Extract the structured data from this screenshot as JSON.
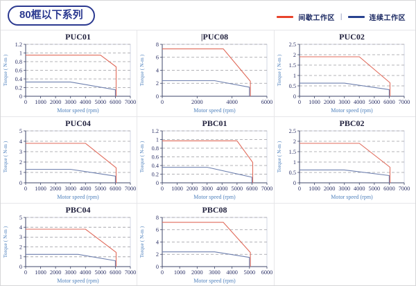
{
  "page": {
    "title_badge": "80框以下系列"
  },
  "legend": {
    "intermittent": "间歇工作区",
    "continuous": "连续工作区",
    "separator": "|",
    "position": "top-right"
  },
  "colors": {
    "accent_navy": "#2b3990",
    "legend_red": "#e8432b",
    "legend_blue": "#27418f",
    "curve_red": "#e06a5a",
    "curve_blue": "#6d7fae",
    "grid": "#9a9aa0",
    "axis": "#3c4468",
    "label_blue": "#4f81bd"
  },
  "chart_data": [
    {
      "type": "line",
      "title": "PUC01",
      "caret": false,
      "xlabel": "Motor speed (rpm)",
      "ylabel": "Torque ( N-m )",
      "xlim": [
        0,
        7000
      ],
      "xticks": [
        0,
        1000,
        2000,
        3000,
        4000,
        5000,
        6000,
        7000
      ],
      "ylim": [
        0,
        1.2
      ],
      "yticks": [
        0,
        0.2,
        0.4,
        0.6,
        0.8,
        1,
        1.2
      ],
      "grid": "horizontal-dashed",
      "series": [
        {
          "name": "间歇工作区",
          "zone": "intermittent",
          "points": [
            [
              0,
              0.95
            ],
            [
              5000,
              0.95
            ],
            [
              6050,
              0.68
            ],
            [
              6050,
              0
            ]
          ]
        },
        {
          "name": "连续工作区",
          "zone": "continuous",
          "points": [
            [
              0,
              0.33
            ],
            [
              3000,
              0.33
            ],
            [
              6000,
              0.15
            ],
            [
              6000,
              0
            ]
          ]
        }
      ]
    },
    {
      "type": "line",
      "title": "PUC08",
      "caret": true,
      "xlabel": "Motor speed (rpm)",
      "ylabel": "Torque ( N-m )",
      "xlim": [
        0,
        6000
      ],
      "xticks": [
        0,
        2000,
        4000,
        6000
      ],
      "ylim": [
        0,
        8
      ],
      "yticks": [
        0,
        2,
        4,
        6,
        8
      ],
      "grid": "horizontal-dashed",
      "series": [
        {
          "name": "间歇工作区",
          "zone": "intermittent",
          "points": [
            [
              0,
              7.3
            ],
            [
              3500,
              7.3
            ],
            [
              5050,
              2.3
            ],
            [
              5050,
              0
            ]
          ]
        },
        {
          "name": "连续工作区",
          "zone": "continuous",
          "points": [
            [
              0,
              2.4
            ],
            [
              3000,
              2.4
            ],
            [
              5000,
              1.4
            ],
            [
              5000,
              0
            ]
          ]
        }
      ]
    },
    {
      "type": "line",
      "title": "PUC02",
      "caret": false,
      "xlabel": "Motor speed (rpm)",
      "ylabel": "Torque ( N-m )",
      "xlim": [
        0,
        7000
      ],
      "xticks": [
        0,
        1000,
        2000,
        3000,
        4000,
        5000,
        6000,
        7000
      ],
      "ylim": [
        0,
        2.5
      ],
      "yticks": [
        0,
        0.5,
        1,
        1.5,
        2,
        2.5
      ],
      "grid": "horizontal-dashed",
      "series": [
        {
          "name": "间歇工作区",
          "zone": "intermittent",
          "points": [
            [
              0,
              1.9
            ],
            [
              4000,
              1.9
            ],
            [
              6050,
              0.65
            ],
            [
              6050,
              0
            ]
          ]
        },
        {
          "name": "连续工作区",
          "zone": "continuous",
          "points": [
            [
              0,
              0.63
            ],
            [
              3000,
              0.63
            ],
            [
              6000,
              0.32
            ],
            [
              6000,
              0
            ]
          ]
        }
      ]
    },
    {
      "type": "line",
      "title": "PUC04",
      "caret": false,
      "xlabel": "Motor speed (rpm)",
      "ylabel": "Torque ( N-m )",
      "xlim": [
        0,
        7000
      ],
      "xticks": [
        0,
        1000,
        2000,
        3000,
        4000,
        5000,
        6000,
        7000
      ],
      "ylim": [
        0,
        5
      ],
      "yticks": [
        0,
        1,
        2,
        3,
        4,
        5
      ],
      "grid": "horizontal-dashed",
      "series": [
        {
          "name": "间歇工作区",
          "zone": "intermittent",
          "points": [
            [
              0,
              3.8
            ],
            [
              4000,
              3.8
            ],
            [
              6050,
              1.45
            ],
            [
              6050,
              0
            ]
          ]
        },
        {
          "name": "连续工作区",
          "zone": "continuous",
          "points": [
            [
              0,
              1.3
            ],
            [
              3000,
              1.3
            ],
            [
              6000,
              0.65
            ],
            [
              6000,
              0
            ]
          ]
        }
      ]
    },
    {
      "type": "line",
      "title": "PBC01",
      "caret": false,
      "xlabel": "Motor speed (rpm)",
      "ylabel": "Torque ( N-m )",
      "xlim": [
        0,
        7000
      ],
      "xticks": [
        0,
        1000,
        2000,
        3000,
        4000,
        5000,
        6000,
        7000
      ],
      "ylim": [
        0,
        1.2
      ],
      "yticks": [
        0,
        0.2,
        0.4,
        0.6,
        0.8,
        1,
        1.2
      ],
      "grid": "horizontal-dashed",
      "series": [
        {
          "name": "间歇工作区",
          "zone": "intermittent",
          "points": [
            [
              0,
              0.97
            ],
            [
              5000,
              0.97
            ],
            [
              6050,
              0.47
            ],
            [
              6050,
              0
            ]
          ]
        },
        {
          "name": "连续工作区",
          "zone": "continuous",
          "points": [
            [
              0,
              0.36
            ],
            [
              3000,
              0.36
            ],
            [
              6000,
              0.13
            ],
            [
              6000,
              0
            ]
          ]
        }
      ]
    },
    {
      "type": "line",
      "title": "PBC02",
      "caret": false,
      "xlabel": "Motor speed (rpm)",
      "ylabel": "Torque ( N-m )",
      "xlim": [
        0,
        7000
      ],
      "xticks": [
        0,
        1000,
        2000,
        3000,
        4000,
        5000,
        6000,
        7000
      ],
      "ylim": [
        0,
        2.5
      ],
      "yticks": [
        0,
        0.5,
        1,
        1.5,
        2,
        2.5
      ],
      "grid": "horizontal-dashed",
      "series": [
        {
          "name": "间歇工作区",
          "zone": "intermittent",
          "points": [
            [
              0,
              1.9
            ],
            [
              4000,
              1.9
            ],
            [
              6050,
              0.75
            ],
            [
              6050,
              0
            ]
          ]
        },
        {
          "name": "连续工作区",
          "zone": "continuous",
          "points": [
            [
              0,
              0.62
            ],
            [
              3000,
              0.62
            ],
            [
              6000,
              0.35
            ],
            [
              6000,
              0
            ]
          ]
        }
      ]
    },
    {
      "type": "line",
      "title": "PBC04",
      "caret": false,
      "xlabel": "Motor speed (rpm)",
      "ylabel": "Torque ( N-m )",
      "xlim": [
        0,
        7000
      ],
      "xticks": [
        0,
        1000,
        2000,
        3000,
        4000,
        5000,
        6000,
        7000
      ],
      "ylim": [
        0,
        5
      ],
      "yticks": [
        0,
        1,
        2,
        3,
        4,
        5
      ],
      "grid": "horizontal-dashed",
      "series": [
        {
          "name": "间歇工作区",
          "zone": "intermittent",
          "points": [
            [
              0,
              3.8
            ],
            [
              4000,
              3.8
            ],
            [
              6050,
              1.45
            ],
            [
              6050,
              0
            ]
          ]
        },
        {
          "name": "连续工作区",
          "zone": "continuous",
          "points": [
            [
              0,
              1.25
            ],
            [
              3500,
              1.25
            ],
            [
              6000,
              0.6
            ],
            [
              6000,
              0
            ]
          ]
        }
      ]
    },
    {
      "type": "line",
      "title": "PBC08",
      "caret": false,
      "xlabel": "Motor speed (rpm)",
      "ylabel": "Torque ( N-m )",
      "xlim": [
        0,
        6000
      ],
      "xticks": [
        0,
        1000,
        2000,
        3000,
        4000,
        5000,
        6000
      ],
      "ylim": [
        0,
        8
      ],
      "yticks": [
        0,
        2,
        4,
        6,
        8
      ],
      "grid": "horizontal-dashed",
      "series": [
        {
          "name": "间歇工作区",
          "zone": "intermittent",
          "points": [
            [
              0,
              7.2
            ],
            [
              3500,
              7.2
            ],
            [
              5050,
              2.3
            ],
            [
              5050,
              0
            ]
          ]
        },
        {
          "name": "连续工作区",
          "zone": "continuous",
          "points": [
            [
              0,
              2.4
            ],
            [
              3000,
              2.4
            ],
            [
              5000,
              1.5
            ],
            [
              5000,
              0
            ]
          ]
        }
      ]
    }
  ]
}
